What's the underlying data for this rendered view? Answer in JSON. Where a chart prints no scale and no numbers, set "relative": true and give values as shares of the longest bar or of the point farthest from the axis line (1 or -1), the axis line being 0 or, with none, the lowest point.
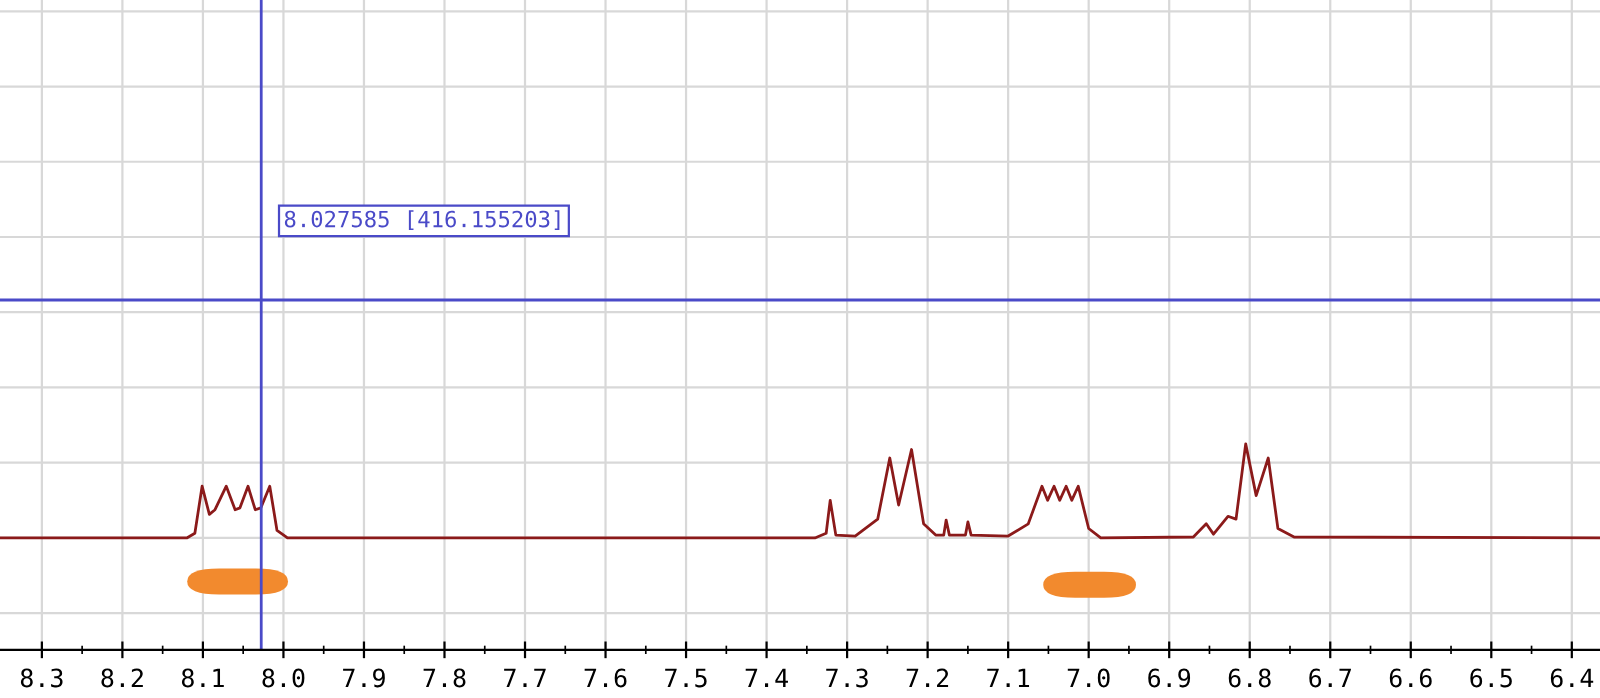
{
  "chart_data": {
    "type": "line",
    "relative": true,
    "xlim": [
      8.352,
      6.365
    ],
    "xticks": [
      8.3,
      8.2,
      8.1,
      {
        "value": 8.0,
        "label": "8.0"
      },
      7.9,
      7.8,
      7.7,
      7.6,
      7.5,
      7.4,
      7.3,
      7.2,
      7.1,
      {
        "value": 7.0,
        "label": "7.0"
      },
      6.9,
      6.8,
      6.7,
      6.6,
      6.5,
      6.4
    ],
    "tick_labels": "x",
    "grid": true,
    "legend": false,
    "series": [
      {
        "color": "#8b1a1a",
        "x": [
          8.352,
          8.12,
          8.11,
          8.101,
          8.092,
          8.085,
          8.071,
          8.06,
          8.054,
          8.044,
          8.035,
          8.028,
          8.017,
          8.008,
          7.995,
          7.34,
          7.326,
          7.321,
          7.314,
          7.29,
          7.262,
          7.247,
          7.236,
          7.22,
          7.205,
          7.19,
          7.18,
          7.177,
          7.173,
          7.153,
          7.15,
          7.146,
          7.1,
          7.075,
          7.058,
          7.051,
          7.043,
          7.036,
          7.028,
          7.021,
          7.013,
          7.0,
          6.985,
          6.87,
          6.854,
          6.845,
          6.827,
          6.817,
          6.805,
          6.792,
          6.777,
          6.765,
          6.745,
          6.365
        ],
        "values": [
          0,
          0,
          0.05,
          0.55,
          0.25,
          0.3,
          0.55,
          0.3,
          0.32,
          0.55,
          0.3,
          0.32,
          0.55,
          0.08,
          0,
          0,
          0.05,
          0.4,
          0.03,
          0.02,
          0.2,
          0.85,
          0.35,
          0.94,
          0.15,
          0.03,
          0.03,
          0.19,
          0.03,
          0.03,
          0.17,
          0.03,
          0.02,
          0.15,
          0.55,
          0.4,
          0.55,
          0.4,
          0.55,
          0.4,
          0.55,
          0.1,
          0,
          0.01,
          0.15,
          0.04,
          0.23,
          0.2,
          1.0,
          0.45,
          0.85,
          0.1,
          0.01,
          0
        ]
      }
    ],
    "ref_lines": [
      {
        "axis": "x",
        "value": 8.027585,
        "label": "8.027585 [416.155203]",
        "color": "#4a4ac8"
      },
      {
        "axis": "y",
        "value": 2.53,
        "color": "#4a4ac8"
      }
    ]
  }
}
